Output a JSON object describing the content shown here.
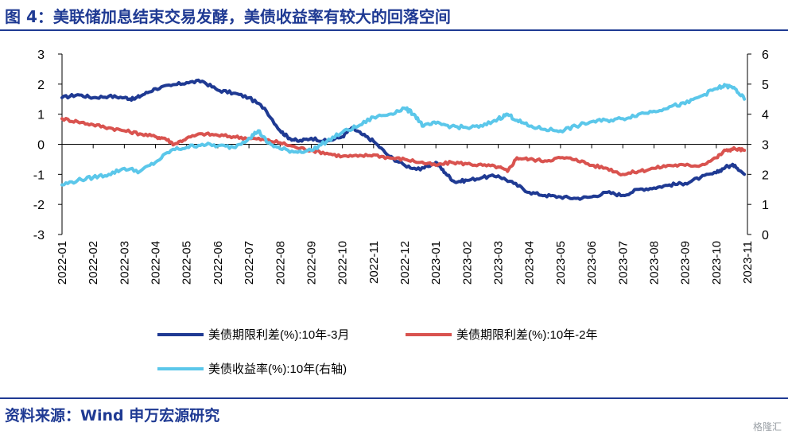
{
  "title": "图 4：美联储加息结束交易发酵，美债收益率有较大的回落空间",
  "source": "资料来源：Wind  申万宏源研究",
  "watermark": "格隆汇",
  "colors": {
    "brand": "#1f3a93",
    "series_10y_3m": "#1f3a93",
    "series_10y_2y": "#d9534f",
    "series_10y": "#5bc7ea"
  },
  "chart_data": {
    "type": "line",
    "title": "",
    "xlabel": "",
    "ylabel_left": "",
    "ylabel_right": "",
    "ylim_left": [
      -3,
      3
    ],
    "ylim_right": [
      0,
      6
    ],
    "yticks_left": [
      "3",
      "2",
      "1",
      "0",
      "-1",
      "-2",
      "-3"
    ],
    "yticks_right": [
      "6",
      "5",
      "4",
      "3",
      "2",
      "1",
      "0"
    ],
    "grid": false,
    "legend_position": "bottom",
    "x": [
      "2022-01",
      "2022-02",
      "2022-03",
      "2022-04",
      "2022-05",
      "2022-06",
      "2022-07",
      "2022-08",
      "2022-09",
      "2022-10",
      "2022-11",
      "2022-12",
      "2023-01",
      "2023-02",
      "2023-03",
      "2023-04",
      "2023-05",
      "2023-06",
      "2023-07",
      "2023-08",
      "2023-09",
      "2023-10",
      "2023-11"
    ],
    "series": [
      {
        "name": "美债期限利差(%):10年-3月",
        "axis": "left",
        "color": "#1f3a93",
        "x": [
          0,
          0.5,
          1,
          1.5,
          2,
          2.3,
          2.6,
          3,
          3.5,
          4,
          4.5,
          5,
          5.5,
          6,
          6.5,
          7,
          7.3,
          7.6,
          8,
          8.5,
          9,
          9.3,
          9.6,
          10,
          10.5,
          11,
          11.5,
          12,
          12.3,
          12.6,
          13,
          13.5,
          14,
          14.5,
          15,
          15.5,
          16,
          16.5,
          17,
          17.5,
          18,
          18.5,
          19,
          19.5,
          20,
          20.5,
          21,
          21.3,
          21.6,
          21.9
        ],
        "values": [
          1.55,
          1.65,
          1.55,
          1.6,
          1.55,
          1.5,
          1.65,
          1.85,
          1.95,
          2.05,
          2.1,
          1.8,
          1.7,
          1.55,
          1.2,
          0.45,
          0.2,
          0.1,
          0.2,
          0.1,
          0.25,
          0.55,
          0.35,
          0.1,
          -0.4,
          -0.7,
          -0.85,
          -0.6,
          -0.95,
          -1.25,
          -1.2,
          -1.1,
          -1.05,
          -1.3,
          -1.6,
          -1.7,
          -1.75,
          -1.8,
          -1.75,
          -1.6,
          -1.7,
          -1.5,
          -1.45,
          -1.35,
          -1.3,
          -1.1,
          -0.95,
          -0.75,
          -0.7,
          -1.0
        ]
      },
      {
        "name": "美债期限利差(%):10年-2年",
        "axis": "left",
        "color": "#d9534f",
        "x": [
          0,
          0.5,
          1,
          1.5,
          2,
          2.5,
          3,
          3.3,
          3.6,
          4,
          4.5,
          5,
          5.5,
          6,
          6.5,
          7,
          7.5,
          8,
          8.5,
          9,
          9.5,
          10,
          10.5,
          11,
          11.5,
          12,
          12.5,
          13,
          13.5,
          14,
          14.3,
          14.6,
          15,
          15.5,
          16,
          16.5,
          17,
          17.5,
          18,
          18.5,
          19,
          19.5,
          20,
          20.5,
          21,
          21.3,
          21.6,
          21.9
        ],
        "values": [
          0.85,
          0.75,
          0.65,
          0.55,
          0.45,
          0.35,
          0.25,
          0.2,
          0.0,
          0.2,
          0.35,
          0.3,
          0.25,
          0.2,
          0.15,
          0.05,
          -0.1,
          -0.2,
          -0.3,
          -0.4,
          -0.4,
          -0.35,
          -0.45,
          -0.5,
          -0.6,
          -0.7,
          -0.6,
          -0.65,
          -0.7,
          -0.75,
          -0.9,
          -0.45,
          -0.5,
          -0.55,
          -0.45,
          -0.5,
          -0.7,
          -0.8,
          -1.0,
          -0.9,
          -0.8,
          -0.7,
          -0.7,
          -0.7,
          -0.45,
          -0.2,
          -0.15,
          -0.2
        ]
      },
      {
        "name": "美债收益率(%):10年(右轴)",
        "axis": "right",
        "color": "#5bc7ea",
        "x": [
          0,
          0.5,
          1,
          1.5,
          2,
          2.5,
          3,
          3.5,
          4,
          4.5,
          5,
          5.5,
          6,
          6.3,
          6.6,
          7,
          7.5,
          8,
          8.5,
          9,
          9.5,
          10,
          10.5,
          11,
          11.3,
          11.6,
          12,
          12.5,
          13,
          13.5,
          14,
          14.3,
          14.6,
          15,
          15.5,
          16,
          16.5,
          17,
          17.5,
          18,
          18.5,
          19,
          19.5,
          20,
          20.5,
          21,
          21.3,
          21.6,
          21.9
        ],
        "values": [
          1.65,
          1.8,
          1.9,
          2.0,
          2.2,
          2.1,
          2.4,
          2.8,
          2.9,
          3.0,
          2.95,
          2.9,
          3.2,
          3.45,
          3.05,
          2.85,
          2.75,
          2.8,
          3.1,
          3.4,
          3.6,
          3.9,
          4.0,
          4.2,
          4.0,
          3.6,
          3.7,
          3.6,
          3.55,
          3.6,
          3.85,
          4.0,
          3.8,
          3.6,
          3.5,
          3.45,
          3.6,
          3.75,
          3.8,
          3.85,
          4.0,
          4.1,
          4.25,
          4.35,
          4.6,
          4.85,
          4.95,
          4.85,
          4.5
        ]
      }
    ]
  },
  "legend": [
    {
      "label": "美债期限利差(%):10年-3月",
      "color": "#1f3a93"
    },
    {
      "label": "美债期限利差(%):10年-2年",
      "color": "#d9534f"
    },
    {
      "label": "美债收益率(%):10年(右轴)",
      "color": "#5bc7ea"
    }
  ]
}
